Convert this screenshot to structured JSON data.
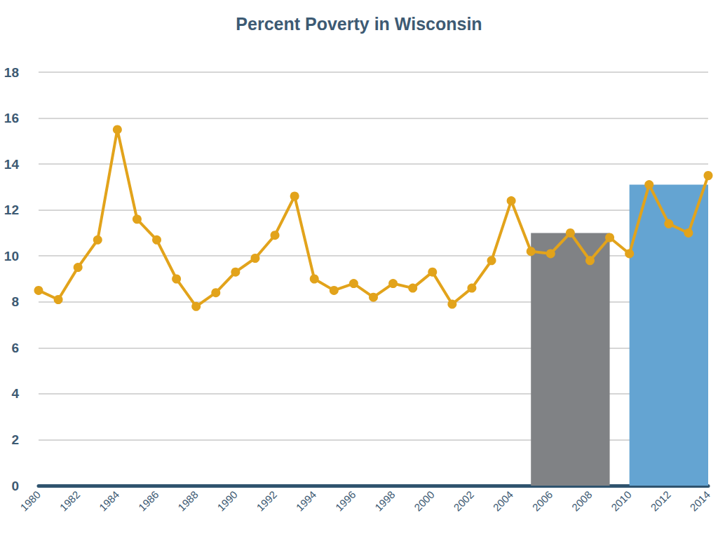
{
  "chart_data": {
    "type": "line",
    "title": "Percent Poverty in Wisconsin",
    "x": [
      1980,
      1981,
      1982,
      1983,
      1984,
      1985,
      1986,
      1987,
      1988,
      1989,
      1990,
      1991,
      1992,
      1993,
      1994,
      1995,
      1996,
      1997,
      1998,
      1999,
      2000,
      2001,
      2002,
      2003,
      2004,
      2005,
      2006,
      2007,
      2008,
      2009,
      2010,
      2011,
      2012,
      2013,
      2014
    ],
    "series": [
      {
        "type": "area",
        "color": "#808285",
        "x": [
          2005,
          2009
        ],
        "values": [
          11,
          11
        ]
      },
      {
        "type": "area",
        "color": "#64a4d2",
        "x": [
          2010,
          2014
        ],
        "values": [
          13.1,
          13.1
        ]
      },
      {
        "type": "line",
        "color": "#e2a31b",
        "marker": "circle",
        "values": [
          8.5,
          8.1,
          9.5,
          10.7,
          15.5,
          11.6,
          10.7,
          9.0,
          7.8,
          8.4,
          9.3,
          9.9,
          10.9,
          12.6,
          9.0,
          8.5,
          8.8,
          8.2,
          8.8,
          8.6,
          9.3,
          7.9,
          8.6,
          9.8,
          12.4,
          10.2,
          10.1,
          11.0,
          9.8,
          10.8,
          10.1,
          13.1,
          11.4,
          11.0,
          13.5
        ]
      }
    ],
    "xlim": [
      1980,
      2014
    ],
    "xticks": [
      1980,
      1982,
      1984,
      1986,
      1988,
      1990,
      1992,
      1994,
      1996,
      1998,
      2000,
      2002,
      2004,
      2006,
      2008,
      2010,
      2012,
      2014
    ],
    "ylim": [
      0,
      18
    ],
    "yticks": [
      0,
      2,
      4,
      6,
      8,
      10,
      12,
      14,
      16,
      18
    ],
    "grid": true
  }
}
